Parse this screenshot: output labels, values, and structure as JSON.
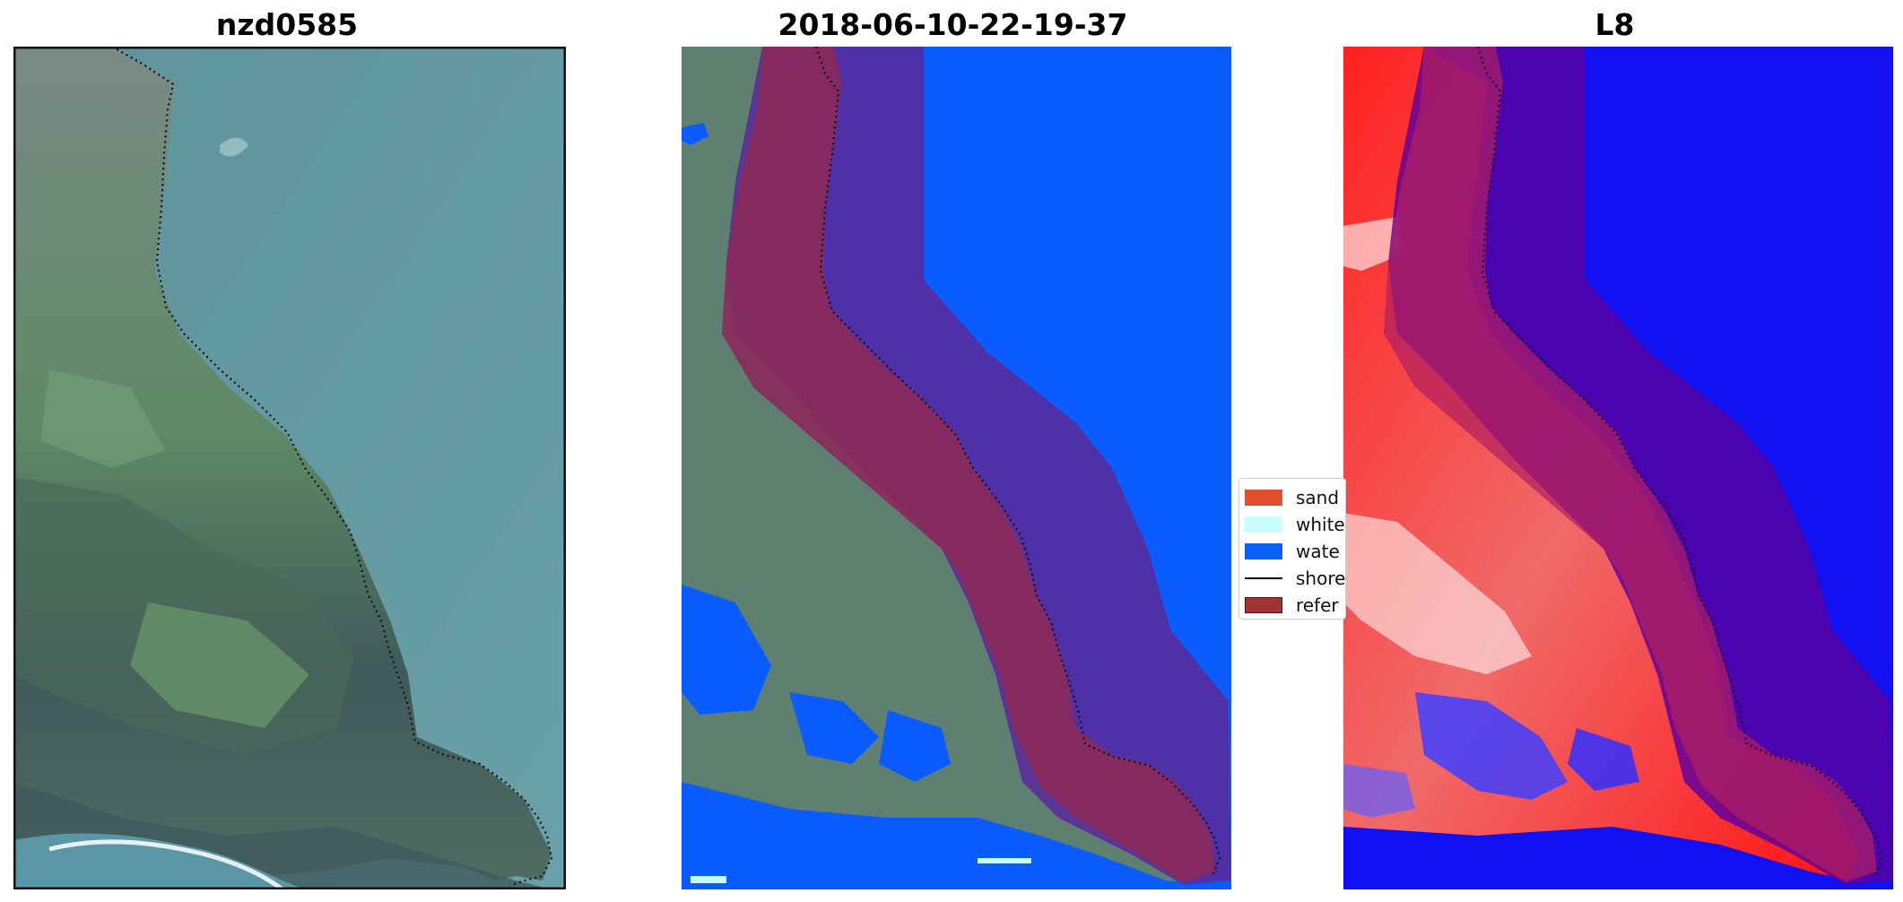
{
  "titles": {
    "left": "nzd0585",
    "middle": "2018-06-10-22-19-37",
    "right": "L8"
  },
  "legend": {
    "items": [
      {
        "label": "sand",
        "color": "#e0502f",
        "kind": "patch"
      },
      {
        "label": "white",
        "color": "#c8fffc",
        "kind": "patch"
      },
      {
        "label": "wate",
        "color": "#0c5ff5",
        "kind": "patch"
      },
      {
        "label": "shore",
        "color": "#000000",
        "kind": "line"
      },
      {
        "label": "refer",
        "color": "#a03434",
        "kind": "patch"
      }
    ]
  },
  "colors": {
    "water_rgb": "#5e95a0",
    "water_class": "#0a5cff",
    "land_green": "#5d7f64",
    "reference_zone": "#8a2a5a",
    "buffer_zone": "#5a2a9a",
    "index_red": "#ff1010",
    "index_blue": "#1010f0"
  }
}
